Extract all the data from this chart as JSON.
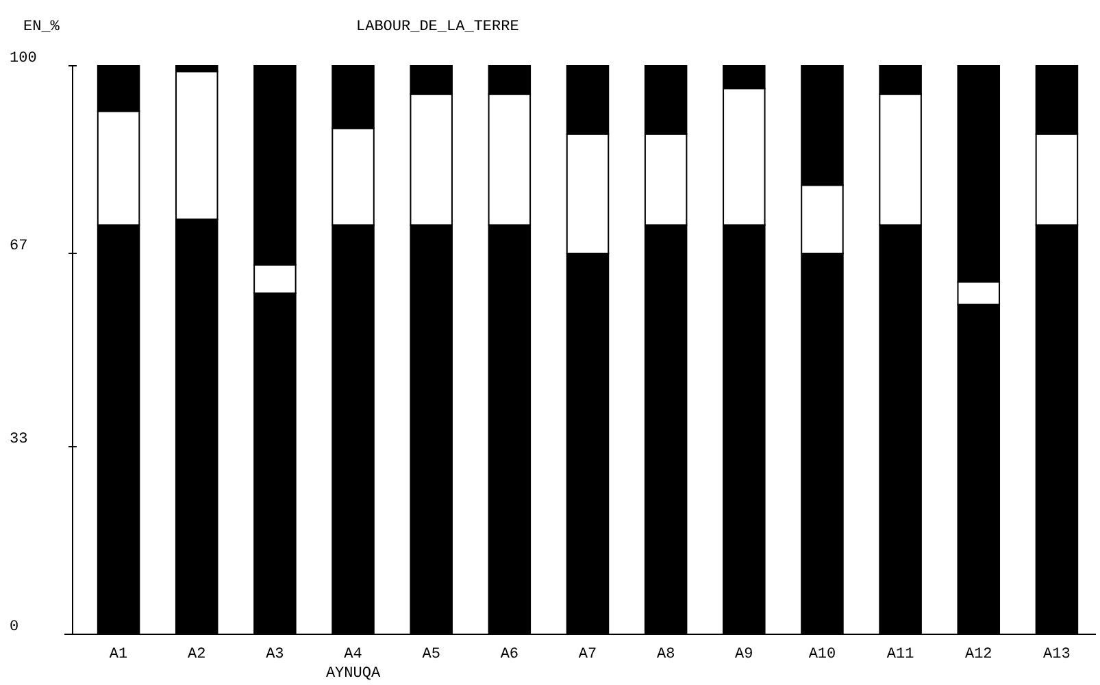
{
  "chart_data": {
    "type": "bar",
    "stacked": true,
    "title": "LABOUR_DE_LA_TERRE",
    "ylabel": "EN_%",
    "xlabel": "AYNUQA",
    "categories": [
      "A1",
      "A2",
      "A3",
      "A4",
      "A5",
      "A6",
      "A7",
      "A8",
      "A9",
      "A10",
      "A11",
      "A12",
      "A13"
    ],
    "series": [
      {
        "color": "#000000",
        "values": [
          72,
          73,
          60,
          72,
          72,
          72,
          67,
          72,
          72,
          67,
          72,
          58,
          72
        ]
      },
      {
        "color": "#ffffff",
        "values": [
          20,
          26,
          5,
          17,
          23,
          23,
          21,
          16,
          24,
          12,
          23,
          4,
          16
        ]
      },
      {
        "color": "#000000",
        "values": [
          8,
          1,
          35,
          11,
          5,
          5,
          12,
          12,
          4,
          21,
          5,
          38,
          12
        ]
      }
    ],
    "ylim": [
      0,
      100
    ],
    "yticks": [
      0,
      33,
      67,
      100
    ],
    "grid": false
  }
}
